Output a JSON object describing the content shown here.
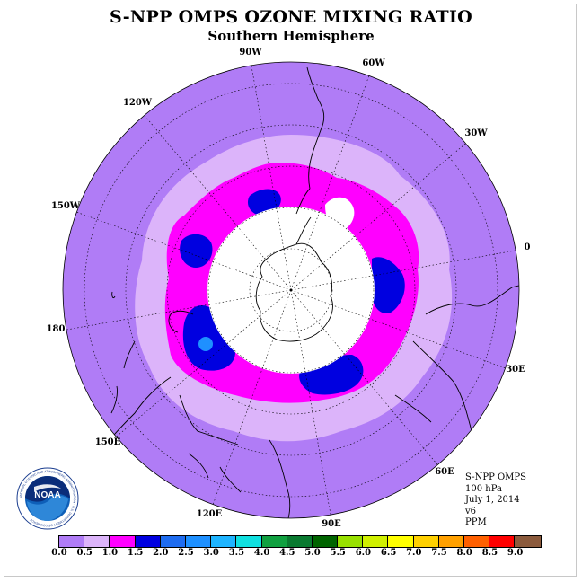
{
  "title": "S-NPP OMPS OZONE MIXING RATIO",
  "subtitle": "Southern Hemisphere",
  "longitude_labels": [
    "90W",
    "60W",
    "30W",
    "0",
    "30E",
    "60E",
    "90E",
    "120E",
    "150E",
    "180",
    "150W",
    "120W"
  ],
  "info": {
    "instrument": "S-NPP OMPS",
    "pressure": "100 hPa",
    "date": "July 1, 2014",
    "version": "v6",
    "units": "PPM"
  },
  "logo": {
    "text": "NOAA",
    "ring_text": "NATIONAL OCEANIC AND ATMOSPHERIC ADMINISTRATION · U.S. DEPARTMENT OF COMMERCE"
  },
  "colorbar": {
    "ticks": [
      "0.0",
      "0.5",
      "1.0",
      "1.5",
      "2.0",
      "2.5",
      "3.0",
      "3.5",
      "4.0",
      "4.5",
      "5.0",
      "5.5",
      "6.0",
      "6.5",
      "7.0",
      "7.5",
      "8.0",
      "8.5",
      "9.0"
    ],
    "colors": [
      "#b07cf6",
      "#dcb4fa",
      "#ff00ff",
      "#0000e0",
      "#1e6cf0",
      "#1e90ff",
      "#1eb4ff",
      "#10e0e0",
      "#10a040",
      "#0a7a30",
      "#006400",
      "#98e000",
      "#d0f000",
      "#ffff00",
      "#ffd000",
      "#ffa000",
      "#ff6000",
      "#ff0000",
      "#8b5a3c"
    ]
  },
  "map_colors": {
    "outer": "#b07cf6",
    "ring": "#dcb4fa",
    "high": "#ff00ff",
    "peak": "#0000e0",
    "max": "#1e90ff",
    "no_data": "#ffffff"
  }
}
